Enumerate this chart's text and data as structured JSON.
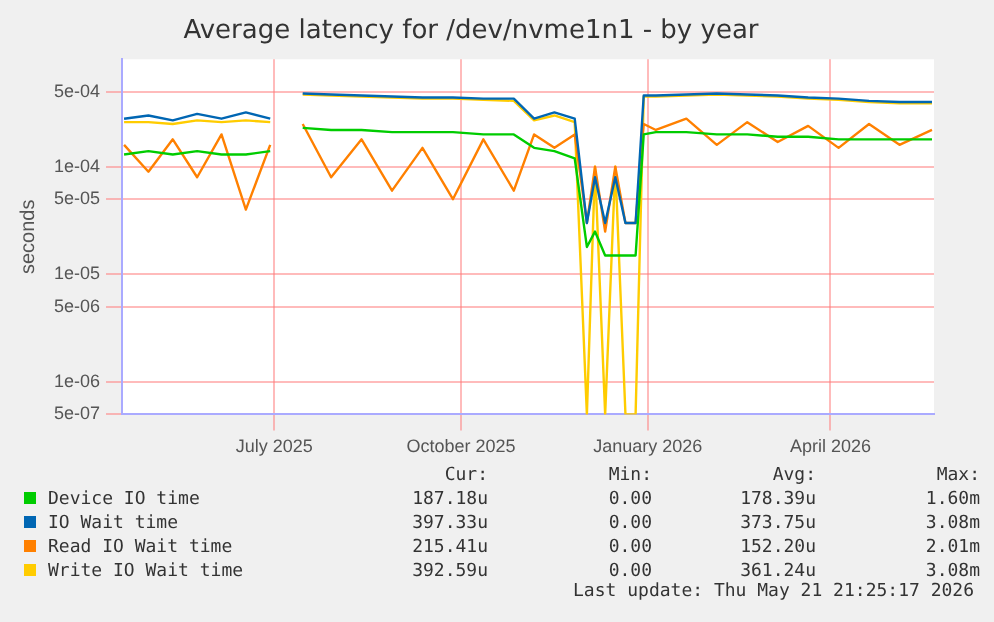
{
  "chart_data": {
    "type": "line",
    "title": "Average latency for /dev/nvme1n1 - by year",
    "ylabel": "seconds",
    "x": [
      "2025-04-18",
      "2025-04-30",
      "2025-05-12",
      "2025-05-24",
      "2025-06-05",
      "2025-06-17",
      "2025-06-29",
      "2025-07-06",
      "2025-07-15",
      "2025-07-29",
      "2025-08-13",
      "2025-08-28",
      "2025-09-12",
      "2025-09-27",
      "2025-10-12",
      "2025-10-27",
      "2025-11-06",
      "2025-11-16",
      "2025-11-26",
      "2025-12-02",
      "2025-12-06",
      "2025-12-11",
      "2025-12-16",
      "2025-12-21",
      "2025-12-26",
      "2025-12-30",
      "2026-01-05",
      "2026-01-20",
      "2026-02-04",
      "2026-02-19",
      "2026-03-06",
      "2026-03-21",
      "2026-04-05",
      "2026-04-20",
      "2026-05-05",
      "2026-05-21"
    ],
    "series": [
      {
        "name": "Device IO time",
        "color": "#00cc00",
        "values": [
          0.00013,
          0.00014,
          0.00013,
          0.00014,
          0.00013,
          0.00013,
          0.00014,
          null,
          0.00023,
          0.00022,
          0.00022,
          0.00021,
          0.00021,
          0.00021,
          0.0002,
          0.0002,
          0.00015,
          0.00014,
          0.00012,
          1.8e-05,
          2.5e-05,
          1.5e-05,
          1.5e-05,
          1.5e-05,
          1.5e-05,
          0.0002,
          0.00021,
          0.00021,
          0.0002,
          0.0002,
          0.00019,
          0.00019,
          0.00018,
          0.00018,
          0.00018,
          0.00018
        ]
      },
      {
        "name": "IO Wait time",
        "color": "#0066b3",
        "values": [
          0.00028,
          0.0003,
          0.00027,
          0.00031,
          0.00028,
          0.00032,
          0.00028,
          null,
          0.00048,
          0.00047,
          0.00046,
          0.00045,
          0.00044,
          0.00044,
          0.00043,
          0.00043,
          0.00028,
          0.00032,
          0.00028,
          3e-05,
          8e-05,
          3e-05,
          8e-05,
          3e-05,
          3e-05,
          0.00046,
          0.00046,
          0.00047,
          0.00048,
          0.00047,
          0.00046,
          0.00044,
          0.00043,
          0.00041,
          0.0004,
          0.0004
        ]
      },
      {
        "name": "Read IO Wait time",
        "color": "#ff8000",
        "values": [
          0.00016,
          9e-05,
          0.00018,
          8e-05,
          0.0002,
          4e-05,
          0.00016,
          null,
          0.00025,
          8e-05,
          0.00018,
          6e-05,
          0.00015,
          5e-05,
          0.00018,
          6e-05,
          0.0002,
          0.00015,
          0.0002,
          3e-05,
          0.0001,
          2.5e-05,
          0.0001,
          3e-05,
          3e-05,
          0.00025,
          0.00022,
          0.00028,
          0.00016,
          0.00026,
          0.00017,
          0.00024,
          0.00015,
          0.00025,
          0.00016,
          0.00022
        ]
      },
      {
        "name": "Write IO Wait time",
        "color": "#ffcc00",
        "values": [
          0.00026,
          0.00026,
          0.00025,
          0.00027,
          0.00026,
          0.00027,
          0.00026,
          null,
          0.00047,
          0.00046,
          0.00045,
          0.00044,
          0.00043,
          0.00043,
          0.00042,
          0.00041,
          0.00027,
          0.0003,
          0.00026,
          5e-07,
          0.0001,
          5e-07,
          0.0001,
          5e-07,
          5e-07,
          0.00045,
          0.00045,
          0.00046,
          0.00047,
          0.00046,
          0.00045,
          0.00043,
          0.00042,
          0.0004,
          0.00039,
          0.00039
        ]
      }
    ],
    "xlim": [
      "2025-04-17",
      "2026-05-22"
    ],
    "xticks": [
      {
        "value": "2025-07-01",
        "label": "July 2025"
      },
      {
        "value": "2025-10-01",
        "label": "October 2025"
      },
      {
        "value": "2026-01-01",
        "label": "January 2026"
      },
      {
        "value": "2026-04-01",
        "label": "April 2026"
      }
    ],
    "ylim": [
      5e-07,
      0.001
    ],
    "yticks": [
      {
        "value": 5e-07,
        "label": "5e-07"
      },
      {
        "value": 1e-06,
        "label": "1e-06"
      },
      {
        "value": 5e-06,
        "label": "5e-06"
      },
      {
        "value": 1e-05,
        "label": "1e-05"
      },
      {
        "value": 5e-05,
        "label": "5e-05"
      },
      {
        "value": 0.0001,
        "label": "1e-04"
      },
      {
        "value": 0.0005,
        "label": "5e-04"
      }
    ],
    "log": "y",
    "grid": true,
    "legend": "bottom",
    "marker": "none",
    "line_style": "solid",
    "annotations": [
      "Cur:",
      "Min:",
      "Avg:",
      "Max:",
      "187.18u",
      "0.00",
      "178.39u",
      "1.60m",
      "397.33u",
      "0.00",
      "373.75u",
      "3.08m",
      "215.41u",
      "0.00",
      "152.20u",
      "2.01m",
      "392.59u",
      "0.00",
      "361.24u",
      "3.08m",
      "Last update: Thu May 21 21:25:17 2026"
    ]
  }
}
